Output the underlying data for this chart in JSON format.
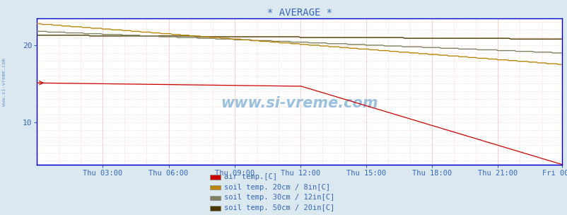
{
  "title": "* AVERAGE *",
  "fig_bg_color": "#dce8f0",
  "plot_bg_color": "#ffffff",
  "xlim": [
    0,
    287
  ],
  "ylim": [
    4.5,
    23.5
  ],
  "yticks": [
    10,
    20
  ],
  "xtick_labels": [
    "Thu 03:00",
    "Thu 06:00",
    "Thu 09:00",
    "Thu 12:00",
    "Thu 15:00",
    "Thu 18:00",
    "Thu 21:00",
    "Fri 00:00"
  ],
  "xtick_positions": [
    36,
    72,
    108,
    144,
    180,
    216,
    252,
    287
  ],
  "vgrid_positions": [
    36,
    72,
    108,
    144,
    180,
    216,
    252,
    287
  ],
  "hgrid_positions": [
    5,
    6,
    7,
    8,
    9,
    10,
    11,
    12,
    13,
    14,
    15,
    16,
    17,
    18,
    19,
    20,
    21,
    22,
    23
  ],
  "line_colors": {
    "air_temp": "#cc0000",
    "soil_20": "#b8860b",
    "soil_30": "#808060",
    "soil_50": "#4a3800"
  },
  "legend_labels": [
    "air temp.[C]",
    "soil temp. 20cm / 8in[C]",
    "soil temp. 30cm / 12in[C]",
    "soil temp. 50cm / 20in[C]"
  ],
  "legend_colors": [
    "#cc0000",
    "#b8860b",
    "#808060",
    "#4a3800"
  ],
  "watermark": "www.si-vreme.com",
  "watermark_color": "#5599cc",
  "axis_color": "#0000cc",
  "text_color": "#3366bb",
  "title_color": "#3366bb",
  "side_label": "www.si-vreme.com",
  "side_label_color": "#6699cc"
}
